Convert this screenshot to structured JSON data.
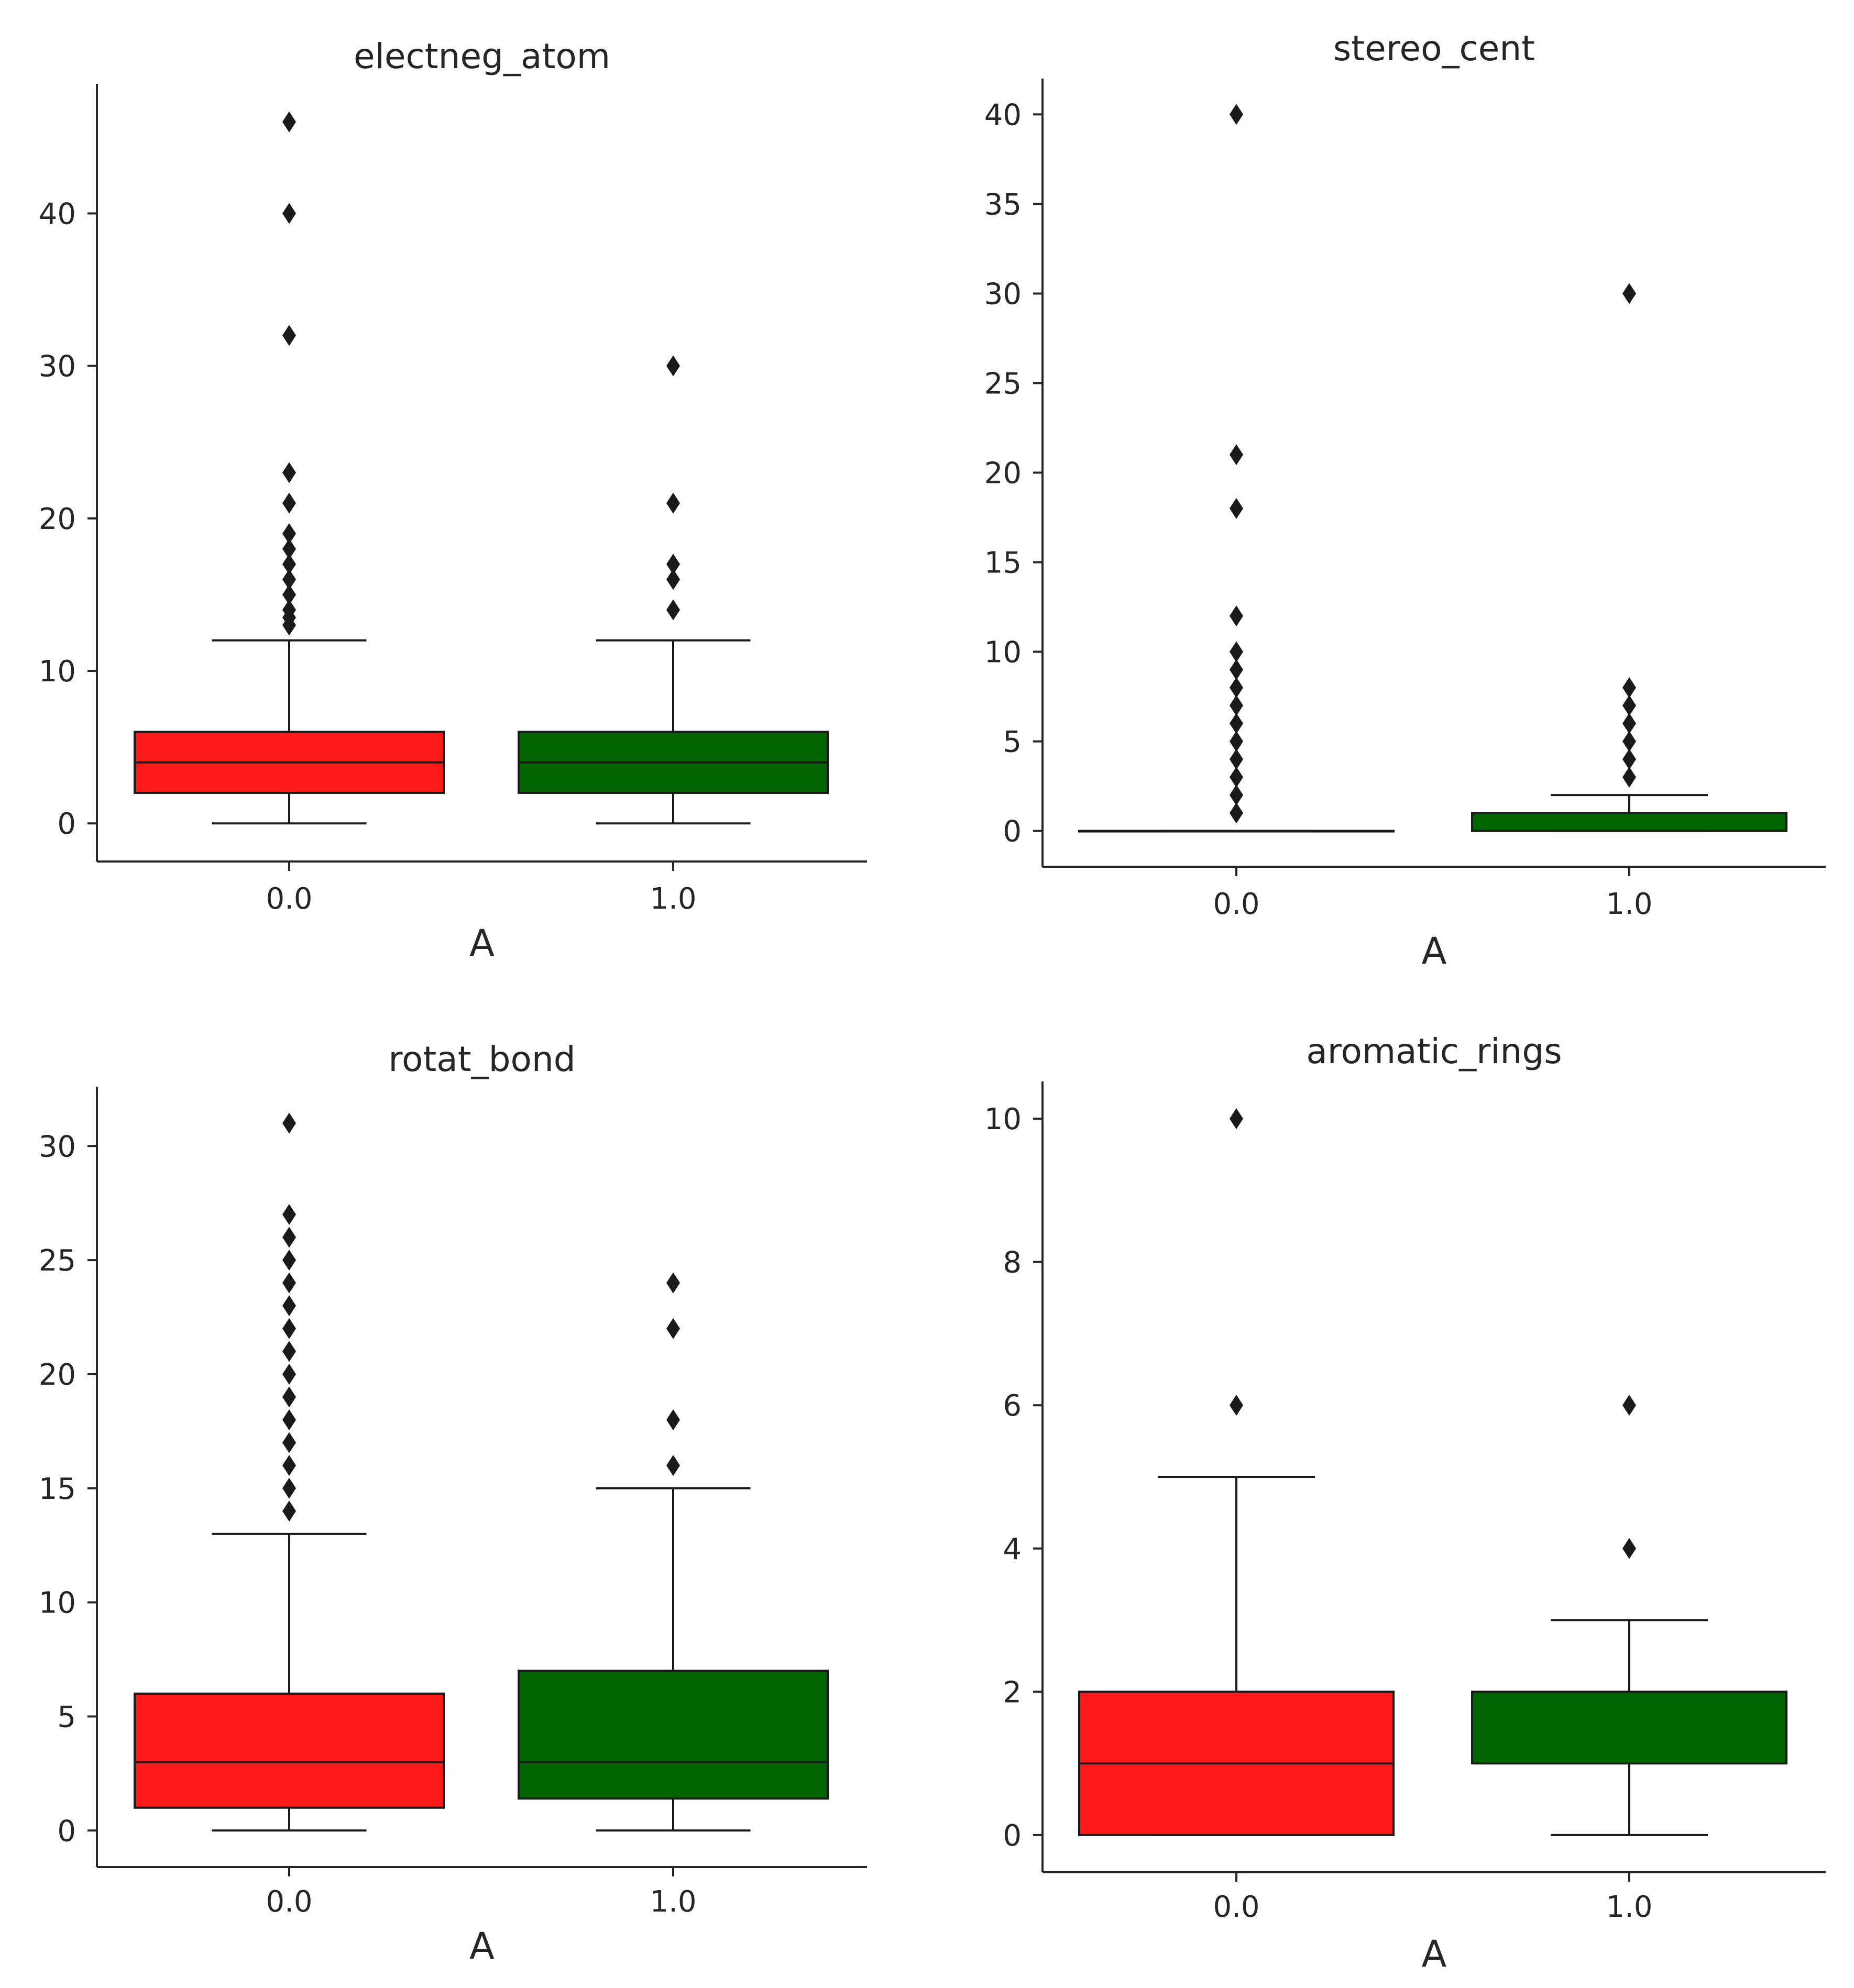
{
  "colors": {
    "class_0": "#ff1a1a",
    "class_1": "#006400",
    "axis": "#262626",
    "line": "#1a1a1a"
  },
  "chart_data": [
    {
      "type": "box",
      "title": "electneg_atom",
      "xlabel": "A",
      "ylabel": "",
      "categories": [
        "0.0",
        "1.0"
      ],
      "ylim": [
        -2.5,
        48.5
      ],
      "yticks": [
        0,
        10,
        20,
        30,
        40
      ],
      "ytick_labels": [
        "0",
        "10",
        "20",
        "30",
        "40"
      ],
      "boxes": [
        {
          "category": "0.0",
          "whisker_low": 0,
          "q1": 2,
          "median": 4,
          "q3": 6,
          "whisker_high": 12,
          "outliers": [
            13,
            13.5,
            14,
            15,
            16,
            17,
            18,
            19,
            21,
            23,
            32,
            40,
            46
          ]
        },
        {
          "category": "1.0",
          "whisker_low": 0,
          "q1": 2,
          "median": 4,
          "q3": 6,
          "whisker_high": 12,
          "outliers": [
            14,
            16,
            17,
            21,
            30
          ]
        }
      ]
    },
    {
      "type": "box",
      "title": "stereo_cent",
      "xlabel": "A",
      "ylabel": "",
      "categories": [
        "0.0",
        "1.0"
      ],
      "ylim": [
        -2,
        42
      ],
      "yticks": [
        0,
        5,
        10,
        15,
        20,
        25,
        30,
        35,
        40
      ],
      "ytick_labels": [
        "0",
        "5",
        "10",
        "15",
        "20",
        "25",
        "30",
        "35",
        "40"
      ],
      "boxes": [
        {
          "category": "0.0",
          "whisker_low": 0,
          "q1": 0,
          "median": 0,
          "q3": 0,
          "whisker_high": 0,
          "outliers": [
            1,
            2,
            3,
            4,
            5,
            6,
            7,
            8,
            9,
            10,
            12,
            18,
            21,
            40
          ]
        },
        {
          "category": "1.0",
          "whisker_low": 0,
          "q1": 0,
          "median": 0,
          "q3": 1,
          "whisker_high": 2,
          "outliers": [
            3,
            4,
            5,
            6,
            7,
            8,
            30
          ]
        }
      ]
    },
    {
      "type": "box",
      "title": "rotat_bond",
      "xlabel": "A",
      "ylabel": "",
      "categories": [
        "0.0",
        "1.0"
      ],
      "ylim": [
        -1.6,
        32.6
      ],
      "yticks": [
        0,
        5,
        10,
        15,
        20,
        25,
        30
      ],
      "ytick_labels": [
        "0",
        "5",
        "10",
        "15",
        "20",
        "25",
        "30"
      ],
      "boxes": [
        {
          "category": "0.0",
          "whisker_low": 0,
          "q1": 1,
          "median": 3,
          "q3": 6,
          "whisker_high": 13,
          "outliers": [
            14,
            15,
            16,
            17,
            18,
            19,
            20,
            21,
            22,
            23,
            24,
            25,
            26,
            27,
            31
          ]
        },
        {
          "category": "1.0",
          "whisker_low": 0,
          "q1": 1.4,
          "median": 3,
          "q3": 7,
          "whisker_high": 15,
          "outliers": [
            16,
            18,
            22,
            24
          ]
        }
      ]
    },
    {
      "type": "box",
      "title": "aromatic_rings",
      "xlabel": "A",
      "ylabel": "",
      "categories": [
        "0.0",
        "1.0"
      ],
      "ylim": [
        -0.52,
        10.52
      ],
      "yticks": [
        0,
        2,
        4,
        6,
        8,
        10
      ],
      "ytick_labels": [
        "0",
        "2",
        "4",
        "6",
        "8",
        "10"
      ],
      "boxes": [
        {
          "category": "0.0",
          "whisker_low": 0,
          "q1": 0,
          "median": 1,
          "q3": 2,
          "whisker_high": 5,
          "outliers": [
            6,
            10
          ]
        },
        {
          "category": "1.0",
          "whisker_low": 0,
          "q1": 1,
          "median": 1,
          "q3": 2,
          "whisker_high": 3,
          "outliers": [
            4,
            6
          ]
        }
      ]
    }
  ]
}
